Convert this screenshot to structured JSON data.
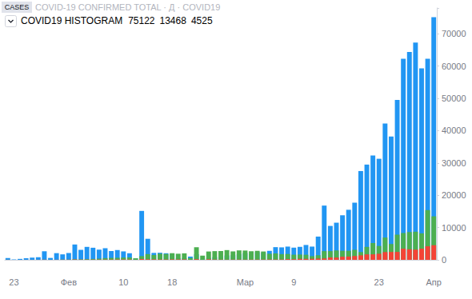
{
  "chart_data": {
    "type": "bar",
    "title": "COVID-19 CONFIRMED TOTAL · Д · COVID19",
    "subtitle": "COVID19 HISTOGRAM",
    "annotations": [
      "CASES"
    ],
    "categories": [
      null,
      "23",
      null,
      null,
      null,
      null,
      null,
      null,
      null,
      null,
      "Фев",
      null,
      null,
      null,
      null,
      null,
      null,
      null,
      null,
      "10",
      null,
      null,
      null,
      null,
      null,
      null,
      null,
      "18",
      null,
      null,
      null,
      null,
      null,
      null,
      null,
      null,
      null,
      null,
      null,
      "Мар",
      null,
      null,
      null,
      null,
      null,
      null,
      null,
      "9",
      null,
      null,
      null,
      null,
      null,
      null,
      null,
      null,
      null,
      null,
      null,
      null,
      null,
      "23",
      null,
      null,
      null,
      null,
      null,
      null,
      null,
      null,
      "Апр"
    ],
    "series": [
      {
        "color": "#2196f3",
        "values": [
          555,
          98,
          288,
          493,
          684,
          809,
          2651,
          588,
          2068,
          1693,
          2111,
          4749,
          3094,
          4011,
          3743,
          3159,
          3597,
          2729,
          3030,
          2612,
          2040,
          419,
          15152,
          6517,
          2145,
          2194,
          2034,
          1878,
          503,
          558,
          1007,
          1745,
          173,
          563,
          853,
          982,
          1349,
          1447,
          1807,
          2113,
          1789,
          2418,
          2207,
          2784,
          3926,
          3860,
          4101,
          3776,
          4025,
          4600,
          4100,
          7200,
          16800,
          10500,
          11500,
          13800,
          15500,
          17700,
          27500,
          29500,
          32300,
          31300,
          42200,
          38200,
          49500,
          62300,
          64400,
          67300,
          59300,
          62300,
          75122
        ]
      },
      {
        "color": "#4caf50",
        "values": [
          28,
          2,
          6,
          3,
          13,
          9,
          46,
          19,
          17,
          79,
          62,
          188,
          151,
          229,
          272,
          363,
          524,
          605,
          628,
          702,
          737,
          467,
          1147,
          1767,
          1506,
          1890,
          1809,
          2059,
          1889,
          2011,
          582,
          3900,
          1290,
          2581,
          2695,
          2731,
          3014,
          2610,
          2925,
          2875,
          2661,
          2790,
          2582,
          1890,
          1982,
          1766,
          1805,
          1592,
          1641,
          1575,
          1130,
          1430,
          2700,
          2700,
          2900,
          2800,
          2800,
          3100,
          2400,
          4000,
          5200,
          4300,
          6900,
          4900,
          7800,
          8300,
          8600,
          8700,
          8200,
          15400,
          13468
        ]
      },
      {
        "color": "#f44336",
        "values": [
          17,
          1,
          8,
          16,
          14,
          26,
          49,
          2,
          38,
          42,
          46,
          103,
          64,
          66,
          72,
          70,
          85,
          87,
          100,
          107,
          100,
          5,
          253,
          152,
          143,
          104,
          98,
          139,
          115,
          125,
          4,
          207,
          11,
          160,
          80,
          60,
          45,
          60,
          70,
          57,
          66,
          73,
          76,
          101,
          98,
          104,
          219,
          194,
          306,
          305,
          325,
          400,
          430,
          730,
          710,
          960,
          1020,
          1190,
          1390,
          1690,
          1700,
          1880,
          2400,
          2440,
          2450,
          3440,
          3260,
          3160,
          3450,
          4200,
          4525
        ]
      }
    ],
    "ylim": [
      0,
      78000
    ],
    "yticks": [
      0,
      10000,
      20000,
      30000,
      40000,
      50000,
      60000,
      70000
    ],
    "grid": false,
    "stacked": false
  }
}
